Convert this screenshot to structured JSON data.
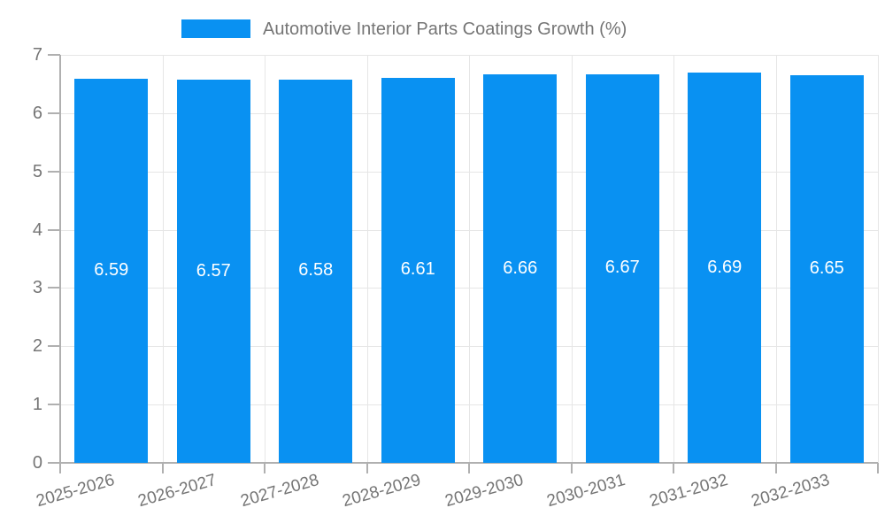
{
  "chart_data": {
    "type": "bar",
    "title": "Automotive Interior Parts Coatings Growth (%)",
    "categories": [
      "2025-2026",
      "2026-2027",
      "2027-2028",
      "2028-2029",
      "2029-2030",
      "2030-2031",
      "2031-2032",
      "2032-2033"
    ],
    "values": [
      6.59,
      6.57,
      6.58,
      6.61,
      6.66,
      6.67,
      6.69,
      6.65
    ],
    "value_labels": [
      "6.59",
      "6.57",
      "6.58",
      "6.61",
      "6.66",
      "6.67",
      "6.69",
      "6.65"
    ],
    "ylabel": "",
    "xlabel": "",
    "ylim": [
      0,
      7
    ],
    "yticks": [
      0,
      1,
      2,
      3,
      4,
      5,
      6,
      7
    ],
    "grid": true,
    "legend_position": "top",
    "colors": {
      "bar": "#0991f2",
      "bar_label": "#ffffff",
      "axis": "#b0b0b0",
      "gridline": "#e6e6e6",
      "tick_label": "#757575",
      "legend_text": "#757575",
      "background": "#ffffff"
    }
  }
}
